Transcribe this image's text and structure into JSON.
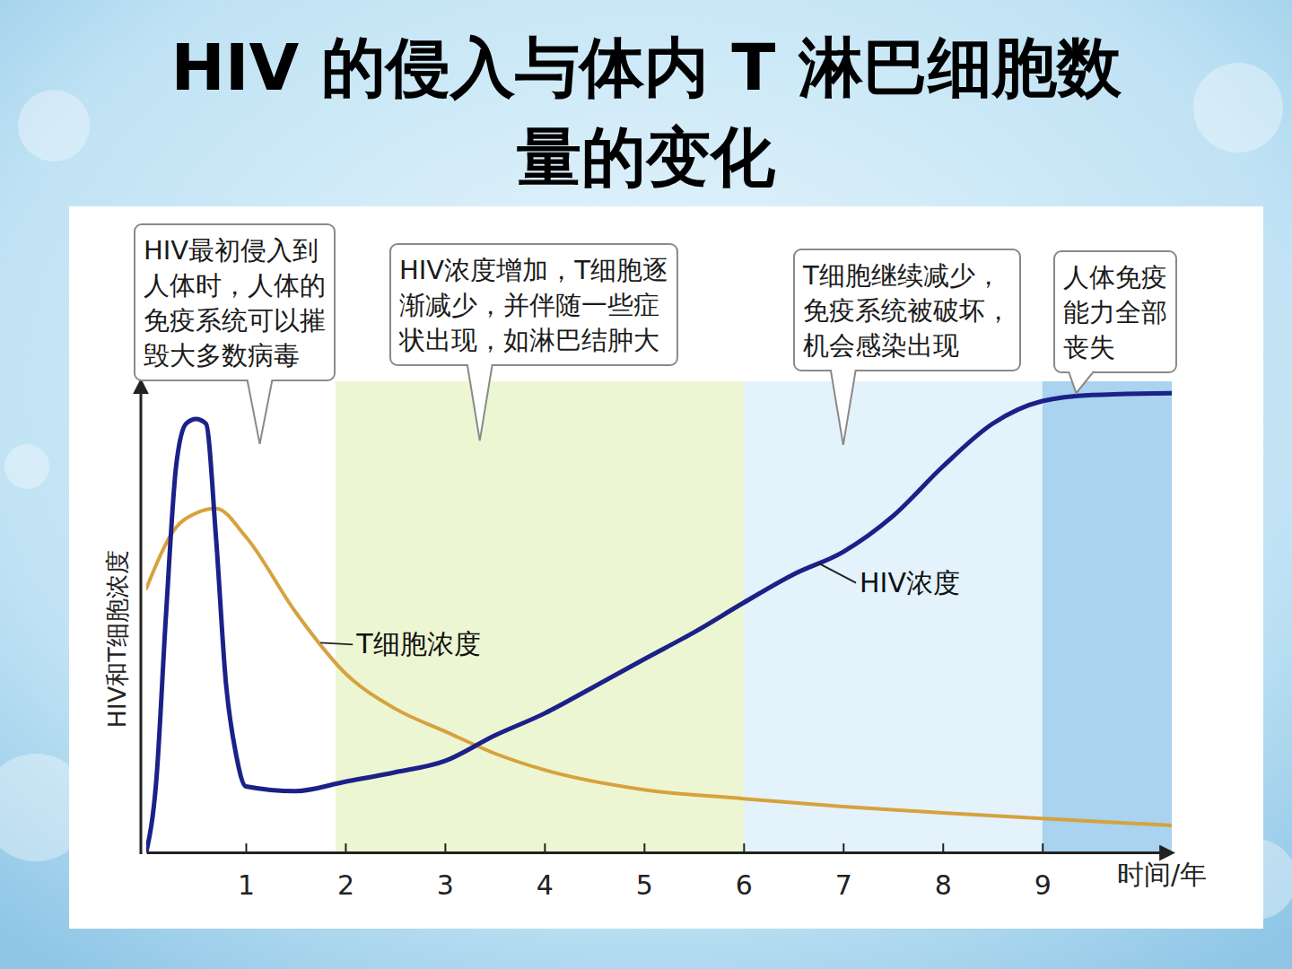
{
  "chart_data": {
    "type": "line",
    "title": "HIV 的侵入与体内 T 淋巴细胞数量的变化",
    "x_label": "时间/年",
    "y_label": "HIV和T细胞浓度",
    "xlim": [
      0,
      10.3
    ],
    "xticks": [
      1,
      2,
      3,
      4,
      5,
      6,
      7,
      8,
      9
    ],
    "ylim": [
      0,
      100
    ],
    "tick_labels": "x",
    "grid": false,
    "series": [
      {
        "name": "HIV浓度",
        "color": "#1b2188",
        "label_at": 6.75,
        "x": [
          0,
          0.1,
          0.2,
          0.3,
          0.4,
          0.5,
          0.6,
          0.7,
          0.8,
          0.9,
          1,
          1.5,
          2,
          2.5,
          3,
          3.5,
          4,
          4.5,
          5,
          5.5,
          6,
          6.5,
          7,
          7.5,
          8,
          8.5,
          9,
          9.5,
          10.3
        ],
        "values": [
          0,
          15,
          51,
          82,
          91,
          92,
          91,
          67,
          36,
          21,
          14,
          13,
          15,
          17,
          19.4,
          24.8,
          29.5,
          35.2,
          41,
          46.7,
          53,
          59,
          63.8,
          71.4,
          81.9,
          91,
          95.8,
          97.1,
          97.5
        ]
      },
      {
        "name": "T细胞浓度",
        "color": "#d6a23e",
        "label_at": 1.75,
        "x": [
          0,
          0.3,
          0.5,
          0.7,
          1,
          1.5,
          2,
          2.5,
          3,
          3.5,
          4,
          5,
          6,
          7,
          8,
          9,
          10.3
        ],
        "values": [
          56,
          69,
          72,
          73,
          67,
          51,
          38,
          30.5,
          25.7,
          21,
          17.5,
          13.3,
          11.4,
          9.7,
          8.4,
          7.2,
          5.7
        ]
      }
    ],
    "bands": [
      {
        "start": 1.9,
        "end": 6,
        "color": "#edf6d2"
      },
      {
        "start": 6,
        "end": 9,
        "color": "#e3f2fb"
      },
      {
        "start": 9,
        "end": 10.3,
        "color": "#a9d3ee"
      }
    ],
    "annotations": [
      {
        "text": [
          "HIV最初侵入到",
          "人体时，人体的",
          "免疫系统可以摧",
          "毁大多数病毒"
        ],
        "x": 1.14,
        "y": 86.7
      },
      {
        "text": [
          "HIV浓度增加，T细胞逐",
          "渐减少，并伴随一些症",
          "状出现，如淋巴结肿大"
        ],
        "x": 3.35,
        "y": 87.4
      },
      {
        "text": [
          "T细胞继续减少，",
          "免疫系统被破坏，",
          "机会感染出现"
        ],
        "x": 7.0,
        "y": 86.5
      },
      {
        "text": [
          "人体免疫",
          "能力全部",
          "丧失"
        ],
        "x": 9.34,
        "y": 97.5
      }
    ]
  }
}
